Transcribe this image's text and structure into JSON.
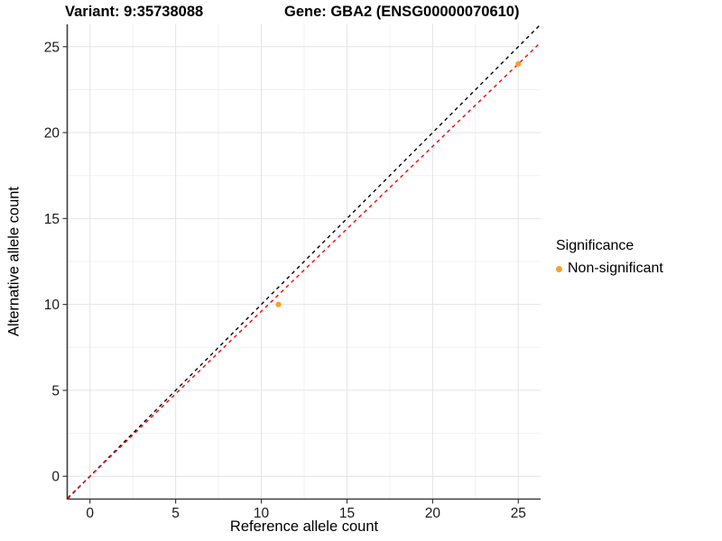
{
  "titles": {
    "variant": "Variant: 9:35738088",
    "gene": "Gene: GBA2 (ENSG00000070610)"
  },
  "axes": {
    "x_label": "Reference allele count",
    "y_label": "Alternative allele count"
  },
  "legend": {
    "title": "Significance",
    "items": [
      {
        "label": "Non-significant",
        "color": "#F8A02A"
      }
    ]
  },
  "colors": {
    "point": "#F8A02A",
    "identity_line": "#000000",
    "ratio_line": "#FB0000",
    "grid_major": "#E4E4E4",
    "grid_minor": "#F1F1F1",
    "axis_line": "#3D3D3D",
    "tick_label": "#1A1A1A",
    "background": "#FFFFFF"
  },
  "chart_data": {
    "type": "scatter",
    "title": "Variant: 9:35738088   Gene: GBA2 (ENSG00000070610)",
    "xlabel": "Reference allele count",
    "ylabel": "Alternative allele count",
    "xlim": [
      -1.3,
      26.3
    ],
    "ylim": [
      -1.3,
      26.3
    ],
    "x_ticks": [
      0,
      5,
      10,
      15,
      20,
      25
    ],
    "y_ticks": [
      0,
      5,
      10,
      15,
      20,
      25
    ],
    "x_minor_ticks": [
      2.5,
      7.5,
      12.5,
      17.5,
      22.5
    ],
    "y_minor_ticks": [
      2.5,
      7.5,
      12.5,
      17.5,
      22.5
    ],
    "grid": true,
    "legend_position": "right",
    "series": [
      {
        "name": "Non-significant",
        "color": "#F8A02A",
        "points": [
          {
            "x": 11,
            "y": 10
          },
          {
            "x": 25,
            "y": 24
          }
        ]
      }
    ],
    "reference_lines": [
      {
        "name": "identity-line",
        "slope": 1,
        "intercept": 0,
        "color": "#000000",
        "style": "dashed"
      },
      {
        "name": "expected-ratio-line",
        "slope": 0.96,
        "intercept": 0,
        "color": "#FB0000",
        "style": "dashed"
      }
    ]
  }
}
